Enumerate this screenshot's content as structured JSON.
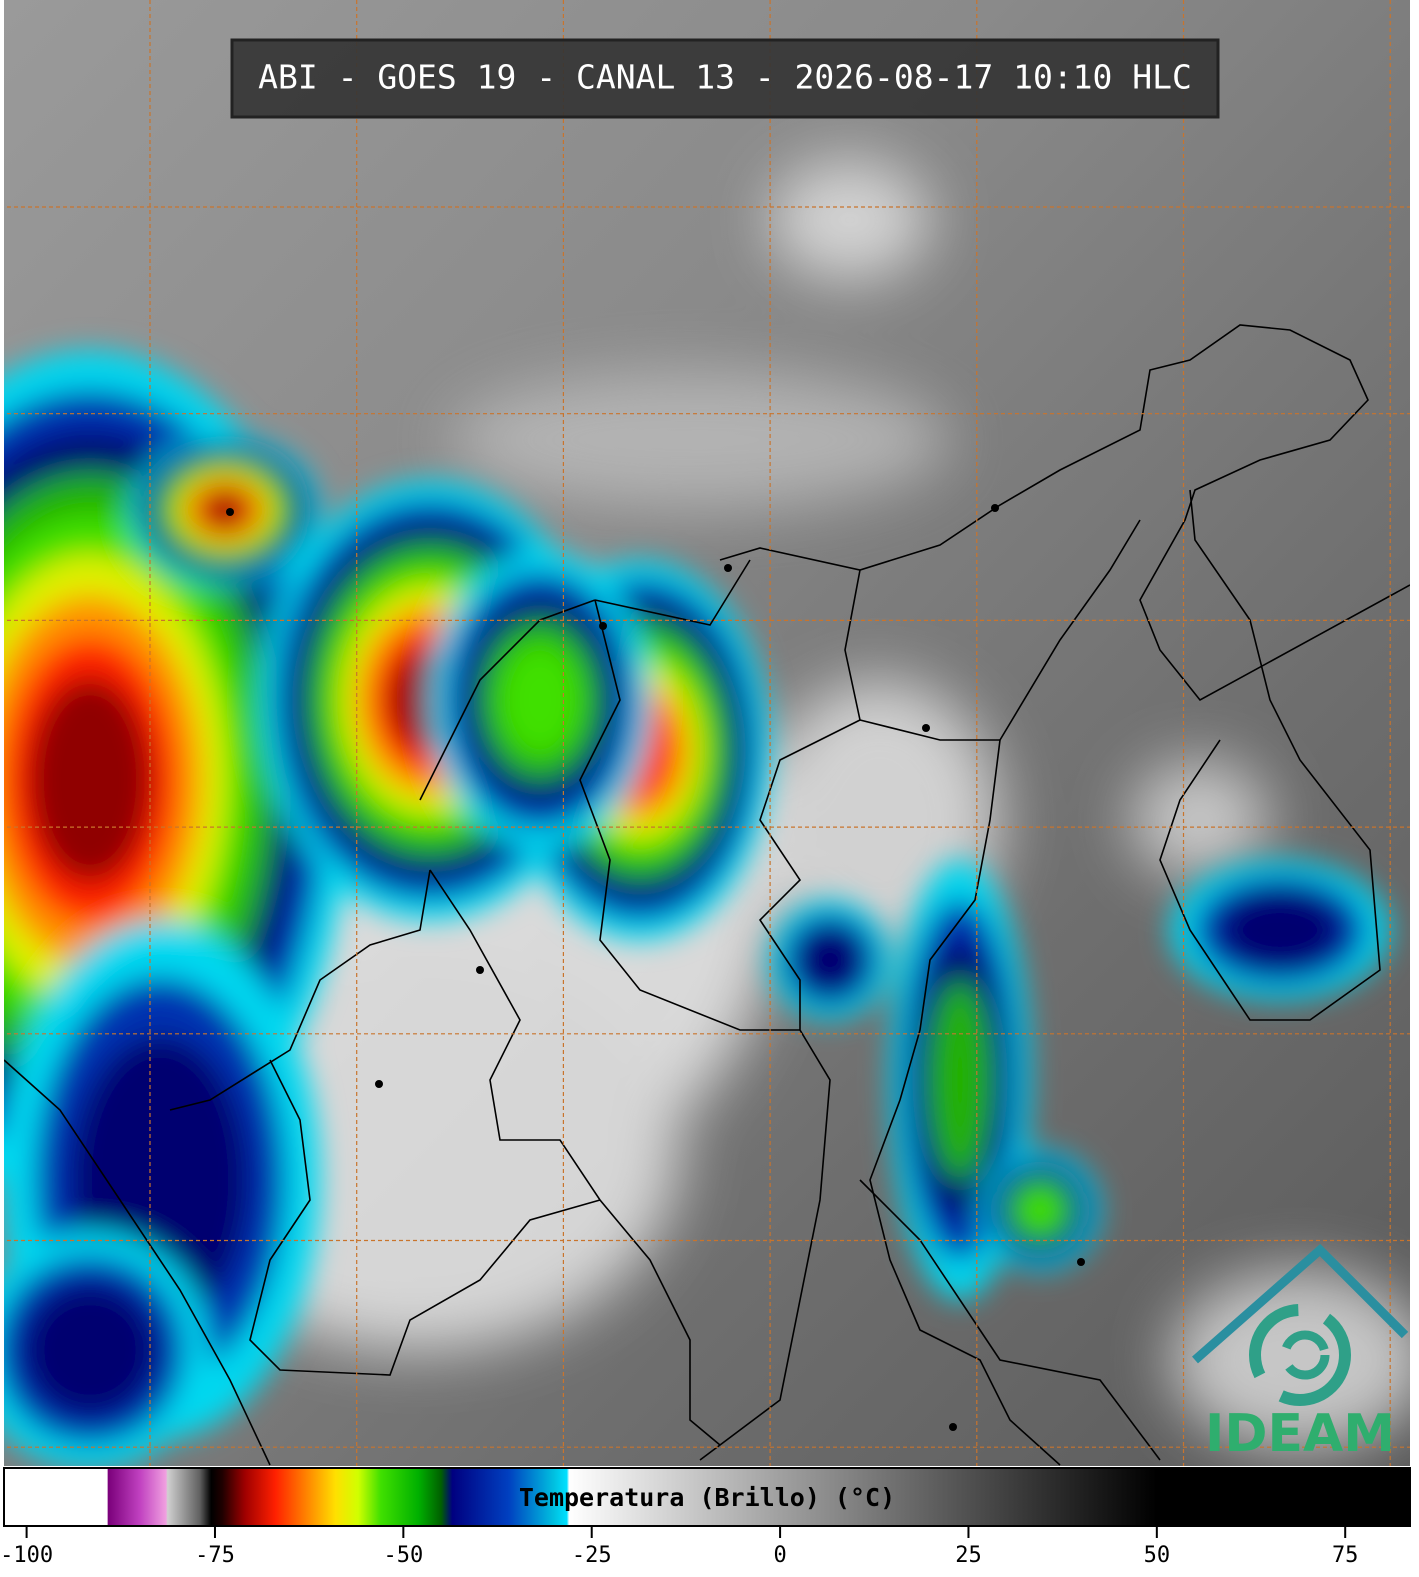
{
  "header": {
    "title": "ABI - GOES 19 - CANAL 13 - 2026-08-17 10:10 HLC"
  },
  "logo": {
    "text": "IDEAM"
  },
  "colorbar": {
    "label": "Temperatura (Brillo) (°C)",
    "xlim": [
      -103,
      83.6
    ],
    "xticks": [
      -100,
      -75,
      -50,
      -25,
      0,
      25,
      50,
      75
    ],
    "stops": [
      {
        "value": -103,
        "color": "#ffffff"
      },
      {
        "value": -89.3,
        "color": "#ffffff"
      },
      {
        "value": -89.2,
        "color": "#7a007a"
      },
      {
        "value": -85,
        "color": "#c040c0"
      },
      {
        "value": -81.5,
        "color": "#f0a0e0"
      },
      {
        "value": -81.3,
        "color": "#d0d0d0"
      },
      {
        "value": -77,
        "color": "#606060"
      },
      {
        "value": -75.5,
        "color": "#000000"
      },
      {
        "value": -74,
        "color": "#200000"
      },
      {
        "value": -71,
        "color": "#a00000"
      },
      {
        "value": -67,
        "color": "#ff2000"
      },
      {
        "value": -63,
        "color": "#ff8000"
      },
      {
        "value": -59,
        "color": "#ffe000"
      },
      {
        "value": -56,
        "color": "#d0ff00"
      },
      {
        "value": -53,
        "color": "#40e000"
      },
      {
        "value": -48,
        "color": "#00b000"
      },
      {
        "value": -45,
        "color": "#006000"
      },
      {
        "value": -43.5,
        "color": "#000080"
      },
      {
        "value": -36,
        "color": "#0040c0"
      },
      {
        "value": -30,
        "color": "#00c0e0"
      },
      {
        "value": -28.3,
        "color": "#00e0ff"
      },
      {
        "value": -28,
        "color": "#ffffff"
      },
      {
        "value": 0,
        "color": "#a0a0a0"
      },
      {
        "value": 50,
        "color": "#000000"
      },
      {
        "value": 83.6,
        "color": "#000000"
      }
    ]
  }
}
